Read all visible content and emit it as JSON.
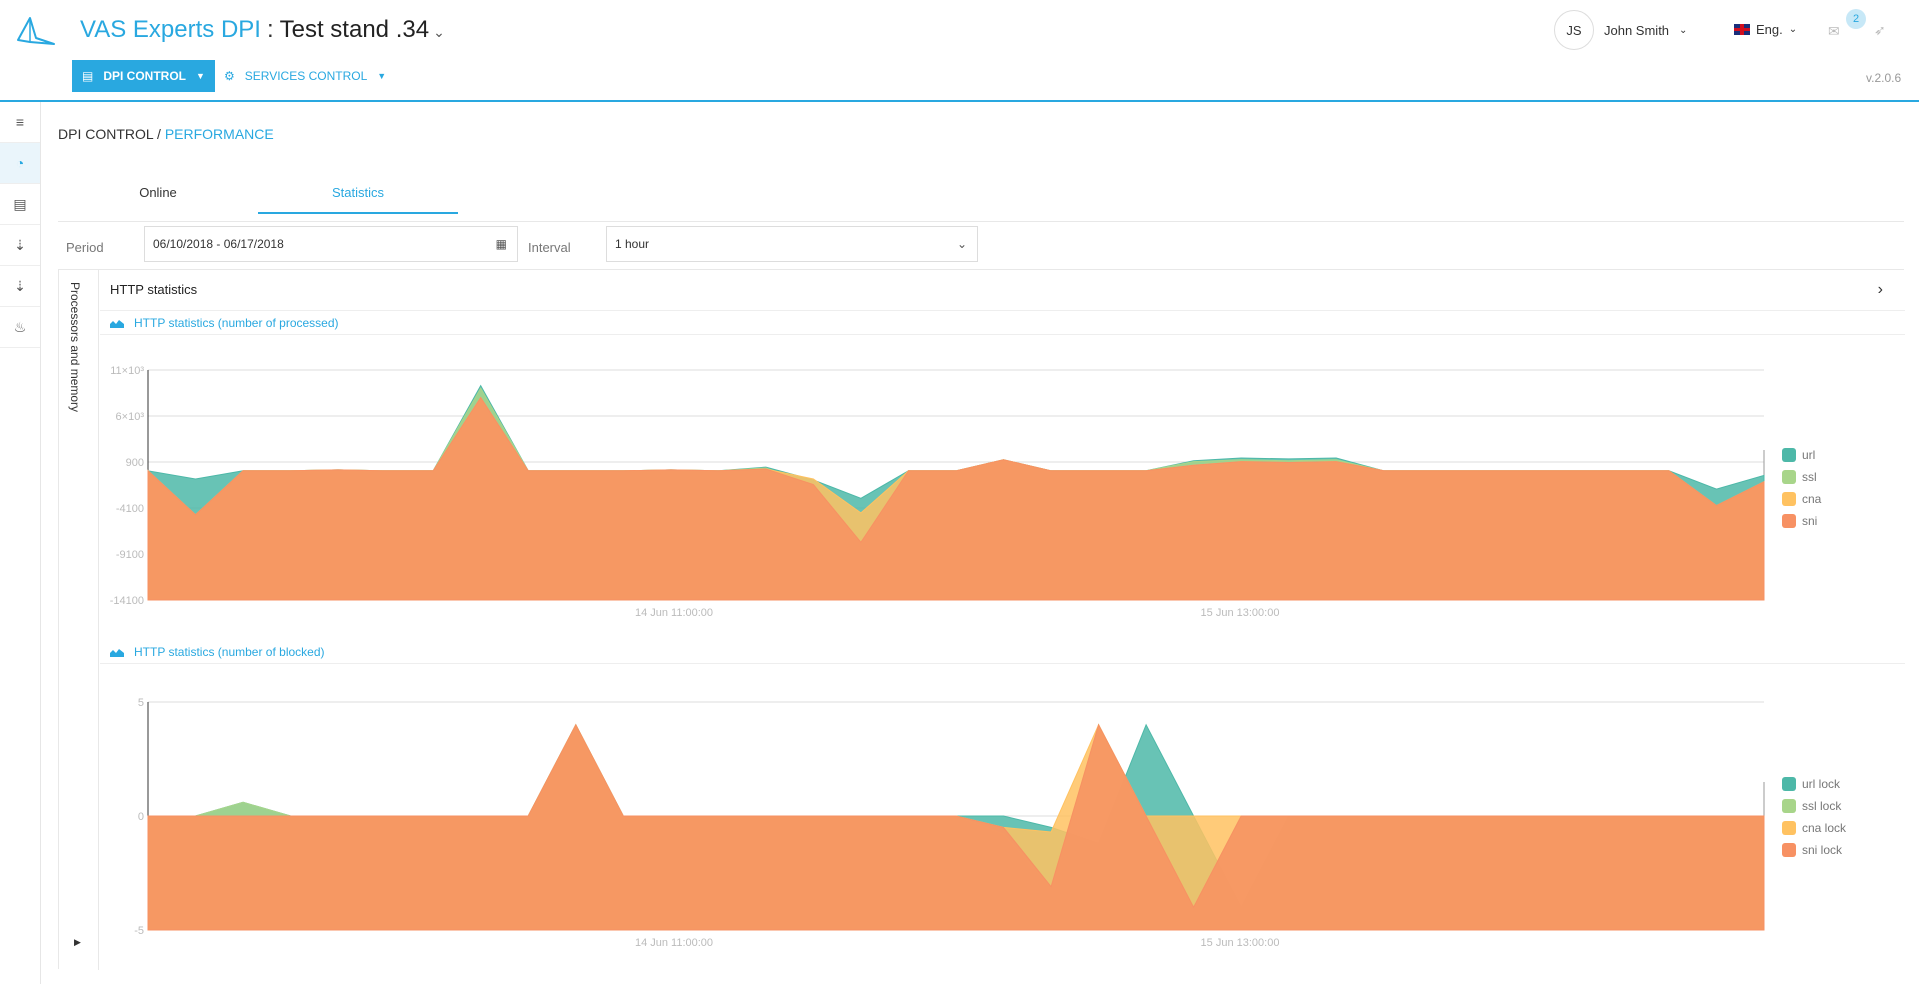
{
  "header": {
    "brand": "VAS Experts DPI",
    "separator": ":",
    "stand": "Test stand .34",
    "nav_dpi": "DPI CONTROL",
    "nav_services": "SERVICES CONTROL",
    "user_initials": "JS",
    "user_name": "John Smith",
    "language": "Eng.",
    "mail_count": "2",
    "version": "v.2.0.6"
  },
  "breadcrumb": {
    "root": "DPI CONTROL",
    "separator": "/",
    "current": "PERFORMANCE"
  },
  "tabs": [
    {
      "label": "Online",
      "active": false
    },
    {
      "label": "Statistics",
      "active": true
    }
  ],
  "filter": {
    "period_label": "Period",
    "period_value": "06/10/2018 - 06/17/2018",
    "interval_label": "Interval",
    "interval_value": "1 hour"
  },
  "panel": {
    "vertical_tab": "Processors and memory",
    "title": "HTTP statistics"
  },
  "chart_data": [
    {
      "type": "area",
      "title": "HTTP statistics (number of processed)",
      "y_ticks": [
        "11×10³",
        "6×10³",
        "900",
        "-4100",
        "-9100",
        "-14100"
      ],
      "x_ticks": [
        "14 Jun 11:00:00",
        "15 Jun 13:00:00"
      ],
      "ylim": [
        -14100,
        11000
      ],
      "series": [
        {
          "name": "url",
          "color": "#4db8a8",
          "values": [
            0,
            -900,
            0,
            0,
            100,
            0,
            0,
            9300,
            0,
            0,
            0,
            100,
            0,
            400,
            -1000,
            -3000,
            0,
            0,
            1200,
            0,
            0,
            0,
            1100,
            1400,
            1300,
            1400,
            0,
            0,
            0,
            0,
            0,
            0,
            0,
            -2000,
            -500
          ]
        },
        {
          "name": "ssl",
          "color": "#a8d58a",
          "values": [
            0,
            -4800,
            0,
            0,
            100,
            0,
            0,
            9000,
            0,
            0,
            0,
            100,
            0,
            300,
            -1500,
            -7800,
            0,
            0,
            1200,
            0,
            0,
            0,
            1000,
            1200,
            1100,
            1200,
            0,
            0,
            0,
            0,
            0,
            0,
            0,
            -3800,
            -1200
          ]
        },
        {
          "name": "cna",
          "color": "#ffc261",
          "values": [
            0,
            -4800,
            0,
            0,
            100,
            0,
            0,
            8000,
            0,
            0,
            0,
            100,
            0,
            200,
            -900,
            -4600,
            0,
            0,
            1200,
            0,
            0,
            0,
            600,
            1000,
            900,
            1000,
            0,
            0,
            0,
            0,
            0,
            0,
            0,
            -3800,
            -1200
          ]
        },
        {
          "name": "sni",
          "color": "#f79163",
          "values": [
            0,
            -4800,
            0,
            0,
            100,
            0,
            0,
            8000,
            0,
            0,
            0,
            100,
            0,
            200,
            -1500,
            -7800,
            0,
            0,
            1200,
            0,
            0,
            0,
            600,
            1000,
            900,
            1000,
            0,
            0,
            0,
            0,
            0,
            0,
            0,
            -3800,
            -1200
          ]
        }
      ]
    },
    {
      "type": "area",
      "title": "HTTP statistics (number of blocked)",
      "y_ticks": [
        "5",
        "0",
        "-5"
      ],
      "x_ticks": [
        "14 Jun 11:00:00",
        "15 Jun 13:00:00"
      ],
      "ylim": [
        -5,
        5
      ],
      "series": [
        {
          "name": "url lock",
          "color": "#4db8a8",
          "values": [
            0,
            0,
            0.6,
            0,
            0,
            0,
            0,
            0,
            0,
            4,
            0,
            0,
            0,
            0,
            0,
            0,
            0,
            0,
            0,
            -0.5,
            -1.2,
            4,
            0,
            -4,
            0,
            0,
            0,
            0,
            0,
            0,
            0,
            0,
            0,
            0,
            0
          ]
        },
        {
          "name": "ssl lock",
          "color": "#a8d58a",
          "values": [
            0,
            0,
            0.6,
            0,
            0,
            0,
            0,
            0,
            0,
            4,
            0,
            0,
            0,
            0,
            0,
            0,
            0,
            0,
            -0.8,
            -3.1,
            4,
            0,
            -4,
            0,
            0,
            0,
            0,
            0,
            0,
            0,
            0,
            0,
            0,
            0,
            0
          ]
        },
        {
          "name": "cna lock",
          "color": "#ffc261",
          "values": [
            0,
            0,
            0,
            0,
            0,
            0,
            0,
            0,
            0,
            4,
            0,
            0,
            0,
            0,
            0,
            0,
            0,
            0,
            -0.5,
            -0.7,
            4,
            0,
            0,
            0,
            0,
            0,
            0,
            0,
            0,
            0,
            0,
            0,
            0,
            0,
            0
          ]
        },
        {
          "name": "sni lock",
          "color": "#f79163",
          "values": [
            0,
            0,
            0,
            0,
            0,
            0,
            0,
            0,
            0,
            4,
            0,
            0,
            0,
            0,
            0,
            0,
            0,
            0,
            -0.5,
            -3.1,
            4,
            0,
            -4,
            0,
            0,
            0,
            0,
            0,
            0,
            0,
            0,
            0,
            0,
            0,
            0
          ]
        }
      ]
    }
  ]
}
